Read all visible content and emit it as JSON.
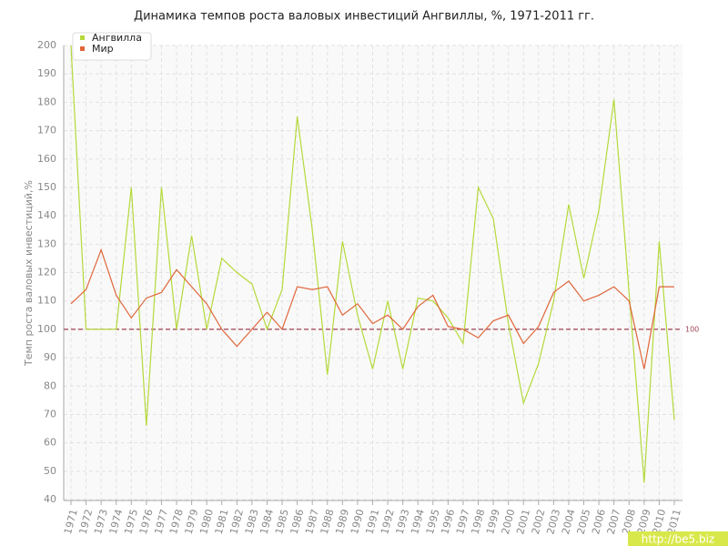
{
  "chart_data": {
    "type": "line",
    "title": "Динамика темпов роста валовых инвестиций Ангвиллы, %, 1971-2011 гг.",
    "y_label": "Темп роста валовых инвестиций,%",
    "categories": [
      "1971",
      "1972",
      "1973",
      "1974",
      "1975",
      "1976",
      "1977",
      "1978",
      "1979",
      "1980",
      "1981",
      "1982",
      "1983",
      "1984",
      "1985",
      "1986",
      "1987",
      "1988",
      "1989",
      "1990",
      "1991",
      "1992",
      "1993",
      "1994",
      "1995",
      "1996",
      "1997",
      "1998",
      "1999",
      "2000",
      "2001",
      "2002",
      "2003",
      "2004",
      "2005",
      "2006",
      "2007",
      "2008",
      "2009",
      "2010",
      "2011"
    ],
    "series": [
      {
        "name": "Ангвилла",
        "color": "#b5d93b",
        "values": [
          200,
          100,
          100,
          100,
          150,
          66,
          150,
          100,
          133,
          100,
          125,
          120,
          116,
          100,
          114,
          175,
          135,
          84,
          131,
          105,
          86,
          110,
          86,
          111,
          110,
          104,
          95,
          150,
          139,
          102,
          74,
          88,
          110,
          144,
          118,
          142,
          181,
          113,
          46,
          131,
          68
        ]
      },
      {
        "name": "Мир",
        "color": "#e0663a",
        "values": [
          109,
          114,
          128,
          112,
          104,
          111,
          113,
          121,
          115,
          109,
          100,
          94,
          100,
          106,
          100,
          115,
          114,
          115,
          105,
          109,
          102,
          105,
          100,
          108,
          112,
          101,
          100,
          97,
          103,
          105,
          95,
          101,
          113,
          117,
          110,
          112,
          115,
          110,
          86,
          115,
          115
        ]
      }
    ],
    "ylim": [
      40,
      200
    ],
    "yticks": [
      40,
      50,
      60,
      70,
      80,
      90,
      100,
      110,
      120,
      130,
      140,
      150,
      160,
      170,
      180,
      190,
      200
    ],
    "grid": true,
    "reference_line": 100,
    "reference_color": "#a04050",
    "legend": "top-left",
    "watermark": "http://be5.biz"
  }
}
